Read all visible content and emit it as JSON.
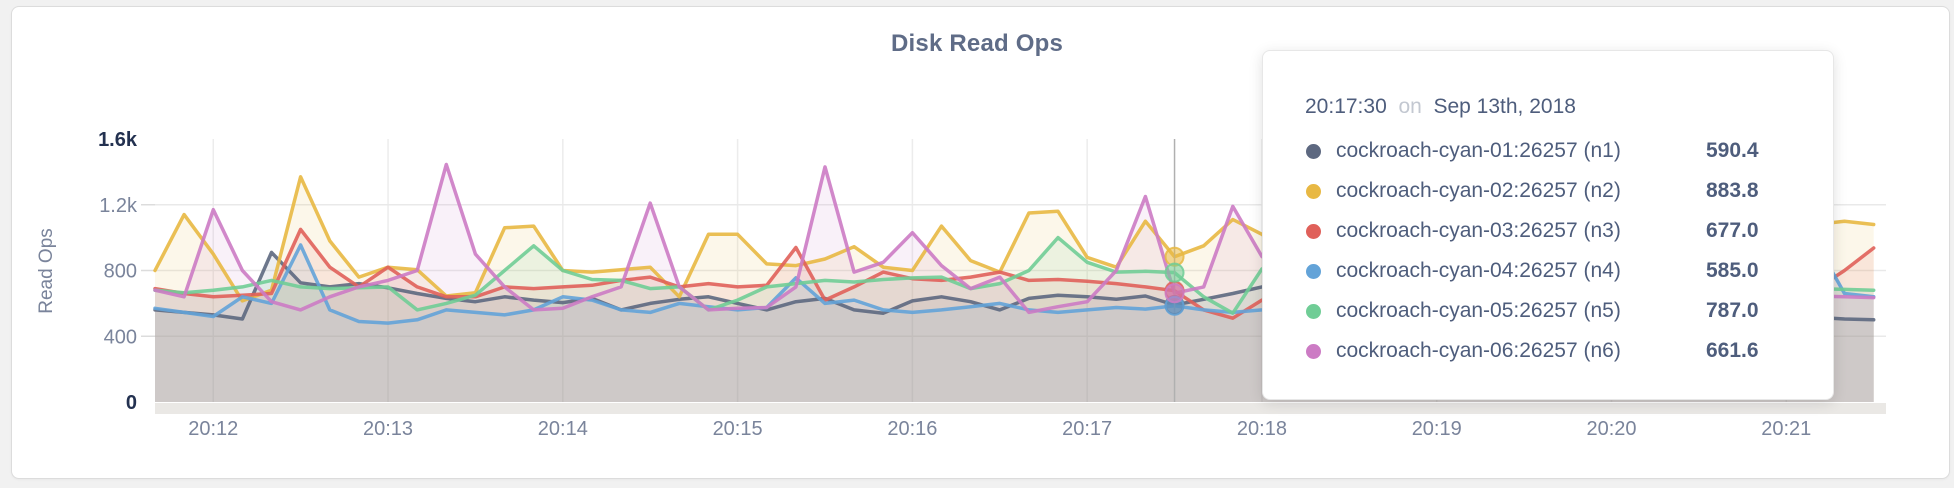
{
  "card": {
    "title": "Disk Read Ops"
  },
  "chart_data": {
    "type": "line",
    "title": "Disk Read Ops",
    "xlabel": "",
    "ylabel": "Read Ops",
    "ylim": [
      0,
      1600
    ],
    "grid": true,
    "start_time": "20:11:40",
    "interval_seconds": 10,
    "x_ticks": [
      {
        "label": "20:12",
        "t": 20
      },
      {
        "label": "20:13",
        "t": 80
      },
      {
        "label": "20:14",
        "t": 140
      },
      {
        "label": "20:15",
        "t": 200
      },
      {
        "label": "20:16",
        "t": 260
      },
      {
        "label": "20:17",
        "t": 320
      },
      {
        "label": "20:18",
        "t": 380
      },
      {
        "label": "20:19",
        "t": 440
      },
      {
        "label": "20:20",
        "t": 500
      },
      {
        "label": "20:21",
        "t": 560
      }
    ],
    "y_ticks": [
      {
        "label": "1.6k",
        "value": 1600,
        "strong": true,
        "gridline": false
      },
      {
        "label": "1.2k",
        "value": 1200,
        "strong": false,
        "gridline": true
      },
      {
        "label": "800",
        "value": 800,
        "strong": false,
        "gridline": true
      },
      {
        "label": "400",
        "value": 400,
        "strong": false,
        "gridline": true
      },
      {
        "label": "0",
        "value": 0,
        "strong": true,
        "gridline": false
      }
    ],
    "hover": {
      "time": "20:17:30",
      "t": 350,
      "index": 35
    },
    "series": [
      {
        "name": "cockroach-cyan-01:26257 (n1)",
        "color": "#5d6880",
        "values": [
          560,
          545,
          530,
          505,
          910,
          725,
          700,
          720,
          695,
          660,
          630,
          610,
          640,
          620,
          605,
          630,
          560,
          600,
          625,
          640,
          600,
          560,
          610,
          630,
          560,
          540,
          615,
          640,
          610,
          560,
          630,
          650,
          640,
          625,
          645,
          590.4,
          625,
          660,
          700,
          690,
          660,
          640,
          620,
          605,
          630,
          650,
          620,
          600,
          640,
          620,
          600,
          630,
          610,
          640,
          620,
          600,
          560,
          515,
          505,
          500
        ]
      },
      {
        "name": "cockroach-cyan-02:26257 (n2)",
        "color": "#e8b843",
        "values": [
          800,
          1140,
          900,
          615,
          680,
          1370,
          980,
          760,
          820,
          805,
          645,
          665,
          1060,
          1070,
          800,
          790,
          805,
          820,
          640,
          1020,
          1020,
          840,
          830,
          870,
          945,
          820,
          800,
          1070,
          860,
          790,
          1150,
          1160,
          880,
          820,
          1100,
          883.8,
          950,
          1110,
          1020,
          880,
          940,
          1060,
          900,
          830,
          970,
          1040,
          880,
          915,
          845,
          885,
          1015,
          935,
          865,
          905,
          1005,
          875,
          900,
          1080,
          1100,
          1080
        ]
      },
      {
        "name": "cockroach-cyan-03:26257 (n3)",
        "color": "#e0605a",
        "values": [
          690,
          660,
          640,
          650,
          660,
          1050,
          820,
          700,
          820,
          700,
          640,
          640,
          700,
          690,
          700,
          710,
          740,
          760,
          700,
          720,
          700,
          710,
          940,
          620,
          700,
          790,
          750,
          740,
          760,
          790,
          740,
          745,
          735,
          720,
          700,
          677.0,
          560,
          510,
          620,
          680,
          700,
          660,
          640,
          700,
          720,
          680,
          660,
          700,
          680,
          660,
          700,
          720,
          690,
          660,
          700,
          680,
          660,
          683,
          800,
          937
        ]
      },
      {
        "name": "cockroach-cyan-04:26257 (n4)",
        "color": "#63a3d8",
        "values": [
          570,
          545,
          520,
          640,
          600,
          955,
          560,
          490,
          480,
          500,
          560,
          545,
          530,
          560,
          640,
          620,
          560,
          545,
          600,
          580,
          560,
          575,
          755,
          600,
          620,
          560,
          545,
          560,
          580,
          600,
          560,
          545,
          560,
          575,
          565,
          585.0,
          560,
          545,
          560,
          580,
          600,
          570,
          550,
          565,
          580,
          560,
          550,
          570,
          560,
          550,
          570,
          585,
          565,
          550,
          570,
          585,
          700,
          975,
          660,
          640
        ]
      },
      {
        "name": "cockroach-cyan-05:26257 (n5)",
        "color": "#70cd96",
        "values": [
          680,
          665,
          680,
          700,
          740,
          700,
          690,
          695,
          700,
          560,
          600,
          650,
          800,
          950,
          800,
          745,
          740,
          690,
          700,
          560,
          620,
          700,
          720,
          740,
          730,
          745,
          755,
          760,
          690,
          720,
          800,
          1000,
          850,
          790,
          795,
          787.0,
          640,
          540,
          810,
          760,
          720,
          740,
          760,
          720,
          700,
          730,
          750,
          720,
          700,
          730,
          760,
          740,
          710,
          730,
          750,
          720,
          700,
          690,
          685,
          680
        ]
      },
      {
        "name": "cockroach-cyan-06:26257 (n6)",
        "color": "#cc7bc4",
        "values": [
          680,
          640,
          1170,
          800,
          610,
          560,
          640,
          700,
          740,
          800,
          1445,
          900,
          700,
          560,
          570,
          640,
          700,
          1210,
          700,
          560,
          570,
          575,
          700,
          1430,
          790,
          850,
          1030,
          830,
          690,
          760,
          545,
          580,
          610,
          800,
          1250,
          661.6,
          700,
          1190,
          885,
          760,
          700,
          720,
          680,
          660,
          700,
          680,
          660,
          680,
          700,
          670,
          650,
          680,
          700,
          670,
          650,
          660,
          650,
          645,
          640,
          635
        ]
      }
    ]
  },
  "tooltip": {
    "time": "20:17:30",
    "conjunction": "on",
    "date": "Sep 13th, 2018",
    "rows": [
      {
        "label": "cockroach-cyan-01:26257 (n1)",
        "value": "590.4",
        "color": "#5d6880"
      },
      {
        "label": "cockroach-cyan-02:26257 (n2)",
        "value": "883.8",
        "color": "#e8b843"
      },
      {
        "label": "cockroach-cyan-03:26257 (n3)",
        "value": "677.0",
        "color": "#e0605a"
      },
      {
        "label": "cockroach-cyan-04:26257 (n4)",
        "value": "585.0",
        "color": "#63a3d8"
      },
      {
        "label": "cockroach-cyan-05:26257 (n5)",
        "value": "787.0",
        "color": "#70cd96"
      },
      {
        "label": "cockroach-cyan-06:26257 (n6)",
        "value": "661.6",
        "color": "#cc7bc4"
      }
    ]
  }
}
